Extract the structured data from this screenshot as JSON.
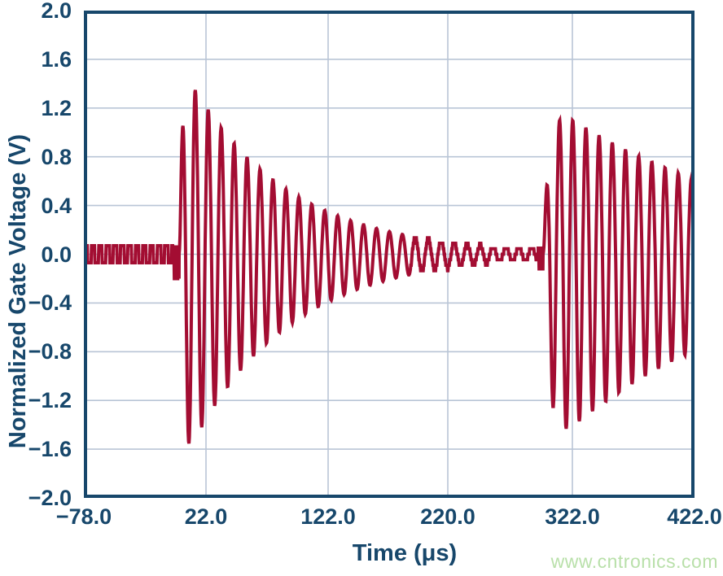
{
  "watermark": "www.cntronics.com",
  "colors": {
    "trace": "#A30D32",
    "axis": "#17476B",
    "grid": "#B9C5D6",
    "background": "#FFFFFF",
    "watermark": "#B9E0AA"
  },
  "chart_data": {
    "type": "line",
    "title": "",
    "xlabel": "Time (μs)",
    "ylabel": "Normalized Gate Voltage (V)",
    "xlim": [
      -78,
      422
    ],
    "ylim": [
      -2.0,
      2.0
    ],
    "grid": true,
    "legend": "none",
    "x_ticks": [
      {
        "t": -78,
        "label": "−78.0"
      },
      {
        "t": 22,
        "label": "22.0"
      },
      {
        "t": 122,
        "label": "122.0"
      },
      {
        "t": 220,
        "label": "220.0"
      },
      {
        "t": 322,
        "label": "322.0"
      },
      {
        "t": 422,
        "label": "422.0"
      }
    ],
    "y_ticks": [
      {
        "v": 2.0,
        "label": "2.0"
      },
      {
        "v": 1.6,
        "label": "1.6"
      },
      {
        "v": 1.2,
        "label": "1.2"
      },
      {
        "v": 0.8,
        "label": "0.8"
      },
      {
        "v": 0.4,
        "label": "0.4"
      },
      {
        "v": 0.0,
        "label": "0.0"
      },
      {
        "v": -0.4,
        "label": "−0.4"
      },
      {
        "v": -0.8,
        "label": "−0.8"
      },
      {
        "v": -1.2,
        "label": "−1.2"
      },
      {
        "v": -1.6,
        "label": "−1.6"
      },
      {
        "v": -2.0,
        "label": "−2.0"
      }
    ],
    "series": [
      {
        "name": "normalized-gate-voltage",
        "color": "#A30D32",
        "summary": {
          "baseline_v": 0.0,
          "baseline_ripple_v": 0.07,
          "burst1": {
            "start_us": 0,
            "first_peak_v": 1.0,
            "max_v": 1.3,
            "min_v": -1.52,
            "period_us": 10.6,
            "decays_to_quantized_ripple_by_us": 200
          },
          "quiet_ripple": {
            "from_us": 200,
            "to_us": 294,
            "amplitude_v": 0.05
          },
          "burst2": {
            "start_us": 298,
            "first_peak_v": 0.55,
            "max_v": 1.15,
            "min_v": -1.45,
            "period_us": 10.8,
            "amplitude_at_plot_end_v": 0.55
          }
        },
        "signal_model": {
          "sample_step_us": 0.35,
          "segments": [
            {
              "type": "square",
              "t0": -78,
              "t1": -5,
              "high": 0.07,
              "low": -0.07,
              "step_us": 3
            },
            {
              "type": "square",
              "t0": -5,
              "t1": 0,
              "high": 0.06,
              "low": -0.2,
              "step_us": 0.7
            },
            {
              "type": "damped_sine",
              "t0": 0,
              "t1": 294,
              "amp": 1.6,
              "tau_us": 80,
              "attack_us": 2.5,
              "period_us": 10.6,
              "neg_scale": 1.12,
              "floor": 0.05,
              "quant": 0.045,
              "quant_below": 0.15
            },
            {
              "type": "square",
              "t0": 294,
              "t1": 298,
              "high": 0.05,
              "low": -0.12,
              "step_us": 0.7
            },
            {
              "type": "damped_sine",
              "t0": 298,
              "t1": 422.5,
              "amp": 1.28,
              "tau_us": 170,
              "attack_us": 5,
              "period_us": 10.8,
              "neg_scale": 1.28,
              "floor": 0.0,
              "quant": 0.045,
              "quant_below": 0.0
            }
          ]
        }
      }
    ]
  }
}
